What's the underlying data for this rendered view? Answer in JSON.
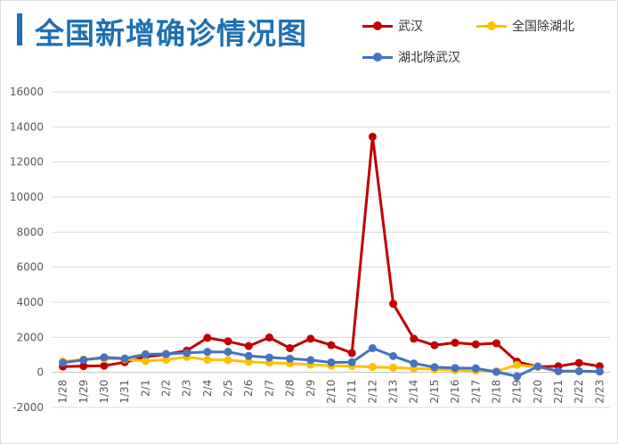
{
  "title": "全国新增确诊情况图",
  "colors": {
    "title": "#1f6fb2",
    "wuhan": "#c00000",
    "national_ex_hubei": "#ffc000",
    "hubei_ex_wuhan": "#4472c4",
    "grid": "#d9d9d9",
    "axis_text": "#595959"
  },
  "chart_data": {
    "type": "line",
    "x": [
      "1/28",
      "1/29",
      "1/30",
      "1/31",
      "2/1",
      "2/2",
      "2/3",
      "2/4",
      "2/5",
      "2/6",
      "2/7",
      "2/8",
      "2/9",
      "2/10",
      "2/11",
      "2/12",
      "2/13",
      "2/14",
      "2/15",
      "2/16",
      "2/17",
      "2/18",
      "2/19",
      "2/20",
      "2/21",
      "2/22",
      "2/23"
    ],
    "series": [
      {
        "name": "武汉",
        "color": "#c00000",
        "values": [
          330,
          360,
          380,
          580,
          890,
          1030,
          1240,
          1970,
          1770,
          1500,
          1990,
          1380,
          1920,
          1550,
          1100,
          13440,
          3910,
          1920,
          1550,
          1690,
          1600,
          1660,
          610,
          320,
          350,
          540,
          350
        ]
      },
      {
        "name": "全国除湖北",
        "color": "#ffc000",
        "values": [
          620,
          730,
          780,
          750,
          650,
          720,
          880,
          720,
          700,
          600,
          560,
          510,
          440,
          380,
          360,
          310,
          270,
          220,
          170,
          120,
          100,
          60,
          430,
          310,
          60,
          60,
          40
        ]
      },
      {
        "name": "湖北除武汉",
        "color": "#4472c4",
        "values": [
          550,
          710,
          860,
          790,
          1030,
          1050,
          1110,
          1170,
          1170,
          940,
          850,
          780,
          700,
          570,
          580,
          1380,
          930,
          510,
          300,
          250,
          230,
          30,
          -230,
          340,
          70,
          70,
          50
        ]
      }
    ],
    "ylim": [
      -2000,
      16000
    ],
    "yticks": [
      -2000,
      0,
      2000,
      4000,
      6000,
      8000,
      10000,
      12000,
      14000,
      16000
    ],
    "grid": true,
    "legend": "top-right"
  }
}
